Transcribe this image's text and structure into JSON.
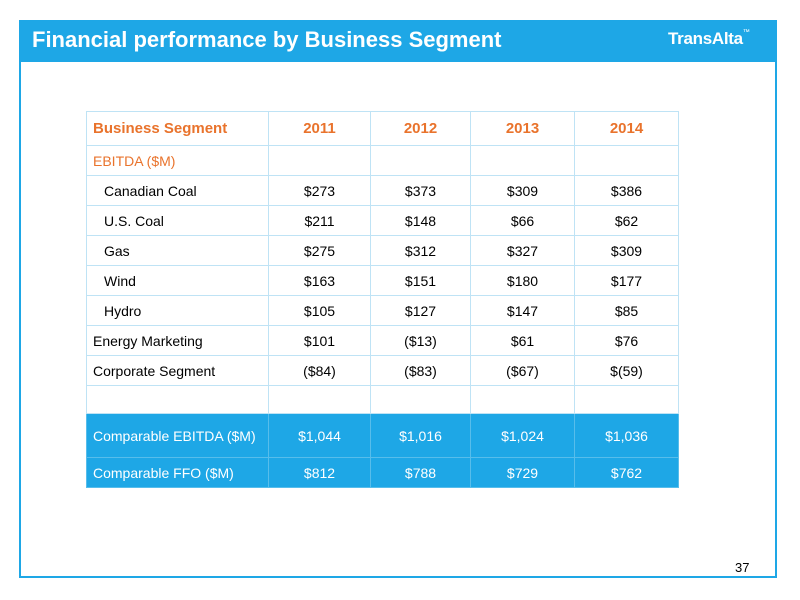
{
  "header": {
    "title": "Financial performance by Business Segment",
    "logo_text": "TransAlta",
    "logo_mark": "™"
  },
  "table": {
    "headers": [
      "Business Segment",
      "2011",
      "2012",
      "2013",
      "2014"
    ],
    "section_label": "EBITDA ($M)",
    "segment_rows": [
      {
        "label": "Canadian Coal",
        "values": [
          "$273",
          "$373",
          "$309",
          "$386"
        ]
      },
      {
        "label": "U.S. Coal",
        "values": [
          "$211",
          "$148",
          "$66",
          "$62"
        ]
      },
      {
        "label": "Gas",
        "values": [
          "$275",
          "$312",
          "$327",
          "$309"
        ]
      },
      {
        "label": "Wind",
        "values": [
          "$163",
          "$151",
          "$180",
          "$177"
        ]
      },
      {
        "label": "Hydro",
        "values": [
          "$105",
          "$127",
          "$147",
          "$85"
        ]
      }
    ],
    "other_rows": [
      {
        "label": "Energy Marketing",
        "values": [
          "$101",
          "($13)",
          "$61",
          "$76"
        ]
      },
      {
        "label": "Corporate Segment",
        "values": [
          "($84)",
          "($83)",
          "($67)",
          "$(59)"
        ]
      }
    ],
    "summary_rows": [
      {
        "label": "Comparable EBITDA ($M)",
        "values": [
          "$1,044",
          "$1,016",
          "$1,024",
          "$1,036"
        ]
      },
      {
        "label": "Comparable FFO ($M)",
        "values": [
          "$812",
          "$788",
          "$729",
          "$762"
        ]
      }
    ]
  },
  "colors": {
    "brand_blue": "#1ea7e6",
    "accent_orange": "#e9732c",
    "grid_line": "#bfe3f5"
  },
  "footer": {
    "page_number": "37"
  }
}
